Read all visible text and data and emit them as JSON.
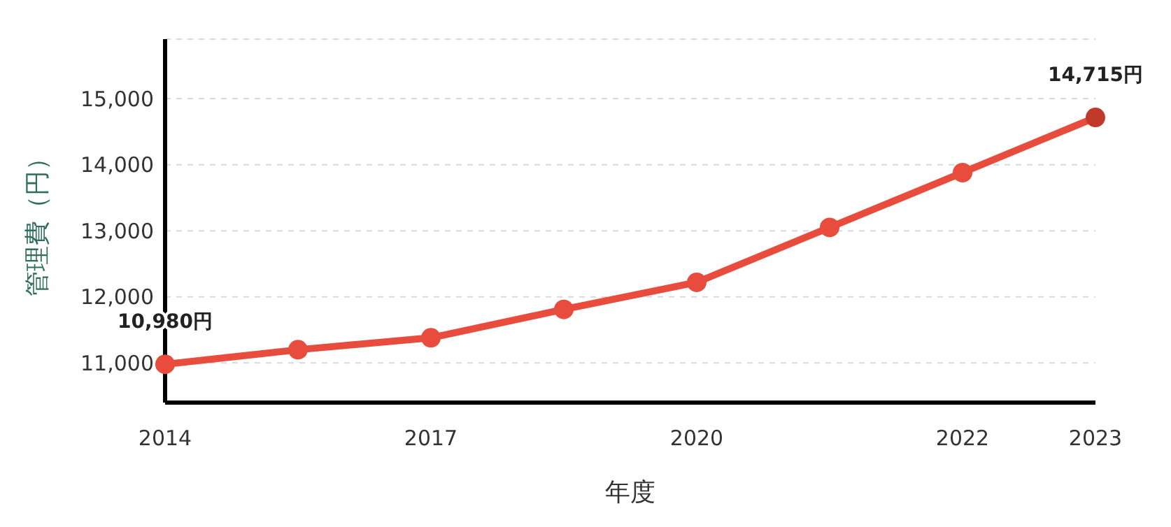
{
  "chart_data": {
    "type": "line",
    "xlabel": "年度",
    "ylabel": "管理費（円）",
    "categories": [
      "2014",
      null,
      "2017",
      null,
      "2020",
      null,
      "2022",
      "2023"
    ],
    "series": [
      {
        "color": "#e74c3c",
        "colors": [
          "#e74c3c",
          "#e74c3c",
          "#e74c3c",
          "#e74c3c",
          "#e74c3c",
          "#e74c3c",
          "#e74c3c",
          "#c0392b"
        ],
        "values": [
          10980,
          11200,
          11380,
          11810,
          12220,
          13050,
          13880,
          14715
        ],
        "value_labels": [
          "10,980円",
          null,
          null,
          null,
          null,
          null,
          null,
          "14,715円"
        ]
      }
    ],
    "ylim": [
      10400,
      15900
    ],
    "yticks": [
      {
        "value": 11000,
        "label": "11,000"
      },
      {
        "value": 12000,
        "label": "12,000"
      },
      {
        "value": 13000,
        "label": "13,000"
      },
      {
        "value": 14000,
        "label": "14,000"
      },
      {
        "value": 15000,
        "label": "15,000"
      }
    ],
    "grid": "y",
    "marker": "circle",
    "line_style": "solid",
    "legend": false
  }
}
